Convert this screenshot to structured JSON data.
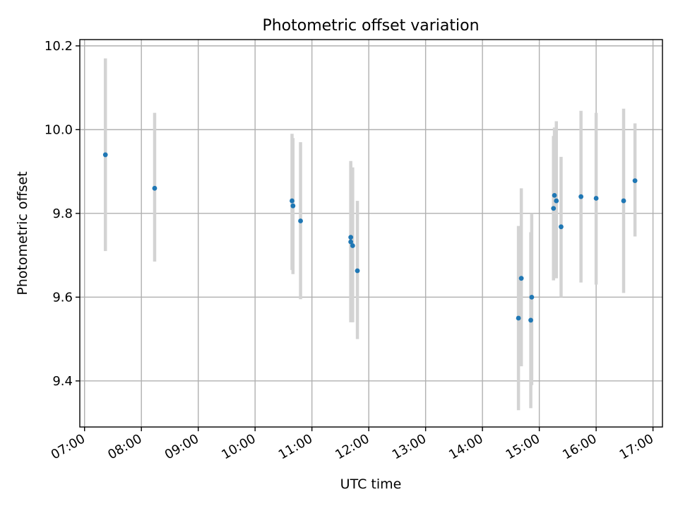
{
  "chart_data": {
    "type": "scatter",
    "title": "Photometric offset variation",
    "xlabel": "UTC time",
    "ylabel": "Photometric offset",
    "xlim": [
      "06:55",
      "17:10"
    ],
    "ylim": [
      9.29,
      10.215
    ],
    "x_ticks": [
      "07:00",
      "08:00",
      "09:00",
      "10:00",
      "11:00",
      "12:00",
      "13:00",
      "14:00",
      "15:00",
      "16:00",
      "17:00"
    ],
    "y_ticks": [
      "9.4",
      "9.6",
      "9.8",
      "10.0",
      "10.2"
    ],
    "grid": true,
    "colors": {
      "points": "#1f77b4",
      "errorbars": "#d3d3d3",
      "grid": "#b0b0b0"
    },
    "series": [
      {
        "points": [
          {
            "x": "07:22",
            "y": 9.94,
            "ylow": 9.71,
            "yhigh": 10.17
          },
          {
            "x": "08:14",
            "y": 9.86,
            "ylow": 9.685,
            "yhigh": 10.04
          },
          {
            "x": "10:39",
            "y": 9.83,
            "ylow": 9.665,
            "yhigh": 9.99
          },
          {
            "x": "10:40",
            "y": 9.818,
            "ylow": 9.655,
            "yhigh": 9.98
          },
          {
            "x": "10:48",
            "y": 9.782,
            "ylow": 9.595,
            "yhigh": 9.97
          },
          {
            "x": "11:41",
            "y": 9.743,
            "ylow": 9.54,
            "yhigh": 9.925
          },
          {
            "x": "11:41",
            "y": 9.732,
            "ylow": 9.545,
            "yhigh": 9.92
          },
          {
            "x": "11:43",
            "y": 9.723,
            "ylow": 9.54,
            "yhigh": 9.91
          },
          {
            "x": "11:48",
            "y": 9.663,
            "ylow": 9.5,
            "yhigh": 9.83
          },
          {
            "x": "14:38",
            "y": 9.55,
            "ylow": 9.33,
            "yhigh": 9.77
          },
          {
            "x": "14:41",
            "y": 9.645,
            "ylow": 9.435,
            "yhigh": 9.86
          },
          {
            "x": "14:51",
            "y": 9.545,
            "ylow": 9.335,
            "yhigh": 9.755
          },
          {
            "x": "14:52",
            "y": 9.6,
            "ylow": 9.39,
            "yhigh": 9.8
          },
          {
            "x": "15:15",
            "y": 9.812,
            "ylow": 9.64,
            "yhigh": 9.985
          },
          {
            "x": "15:16",
            "y": 9.843,
            "ylow": 9.665,
            "yhigh": 10.005
          },
          {
            "x": "15:18",
            "y": 9.83,
            "ylow": 9.645,
            "yhigh": 10.02
          },
          {
            "x": "15:23",
            "y": 9.768,
            "ylow": 9.6,
            "yhigh": 9.935
          },
          {
            "x": "15:44",
            "y": 9.84,
            "ylow": 9.635,
            "yhigh": 10.045
          },
          {
            "x": "16:00",
            "y": 9.836,
            "ylow": 9.63,
            "yhigh": 10.04
          },
          {
            "x": "16:29",
            "y": 9.83,
            "ylow": 9.61,
            "yhigh": 10.05
          },
          {
            "x": "16:41",
            "y": 9.878,
            "ylow": 9.745,
            "yhigh": 10.015
          }
        ]
      }
    ]
  }
}
